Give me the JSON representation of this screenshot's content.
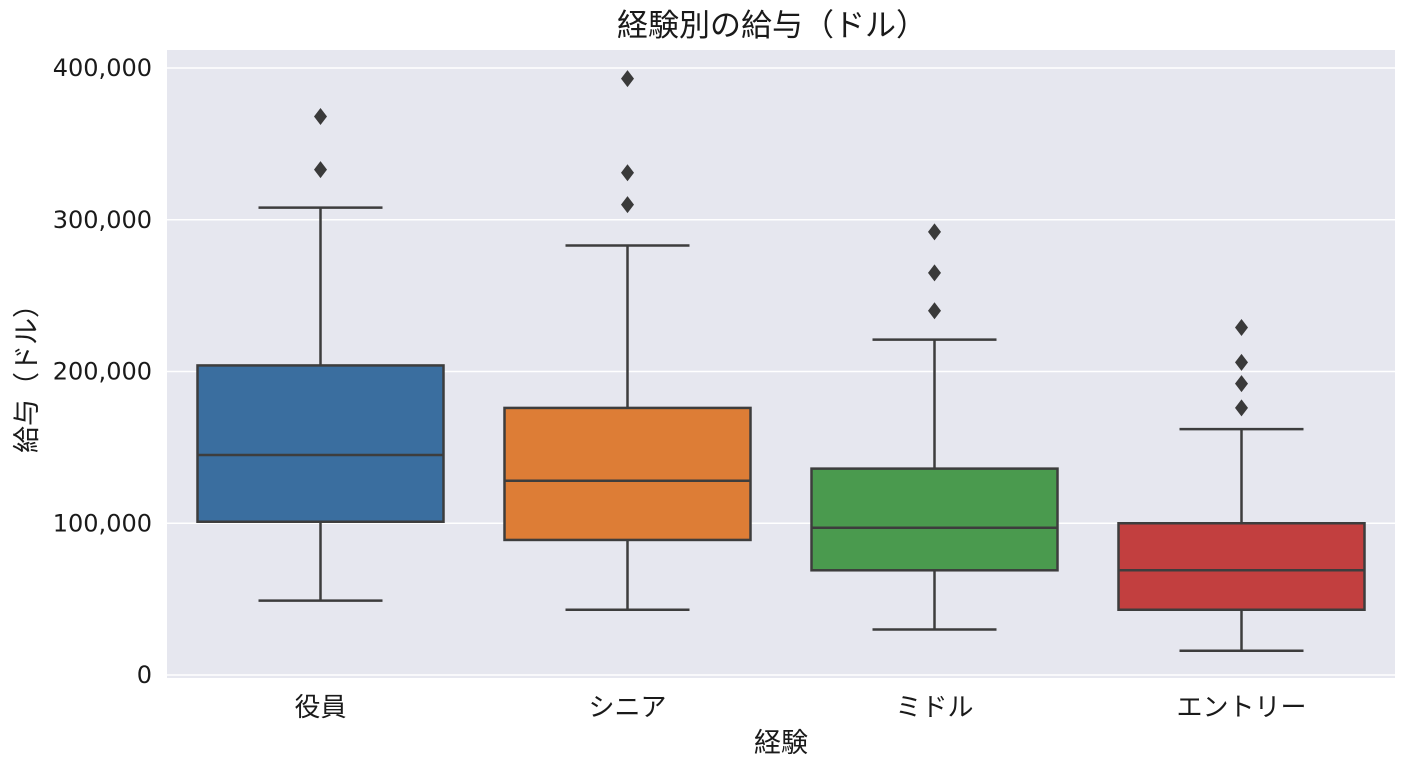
{
  "chart_data": {
    "type": "box",
    "title": "経験別の給与（ドル）",
    "xlabel": "経験",
    "ylabel": "給与（ドル）",
    "ylim": [
      0,
      400000
    ],
    "yticks": [
      0,
      100000,
      200000,
      300000,
      400000
    ],
    "ytick_labels": [
      "0",
      "100,000",
      "200,000",
      "300,000",
      "400,000"
    ],
    "grid": true,
    "categories": [
      "役員",
      "シニア",
      "ミドル",
      "エントリー"
    ],
    "boxes": [
      {
        "category": "役員",
        "whisker_low": 49000,
        "q1": 101000,
        "median": 145000,
        "q3": 204000,
        "whisker_high": 308000,
        "outliers": [
          333000,
          368000
        ],
        "color": "#3a6e9f"
      },
      {
        "category": "シニア",
        "whisker_low": 43000,
        "q1": 89000,
        "median": 128000,
        "q3": 176000,
        "whisker_high": 283000,
        "outliers": [
          310000,
          331000,
          393000
        ],
        "color": "#dd7d36"
      },
      {
        "category": "ミドル",
        "whisker_low": 30000,
        "q1": 69000,
        "median": 97000,
        "q3": 136000,
        "whisker_high": 221000,
        "outliers": [
          240000,
          265000,
          292000
        ],
        "color": "#4a9a4e"
      },
      {
        "category": "エントリー",
        "whisker_low": 16000,
        "q1": 43000,
        "median": 69000,
        "q3": 100000,
        "whisker_high": 162000,
        "outliers": [
          176000,
          192000,
          206000,
          229000
        ],
        "color": "#c23f3f"
      }
    ]
  }
}
